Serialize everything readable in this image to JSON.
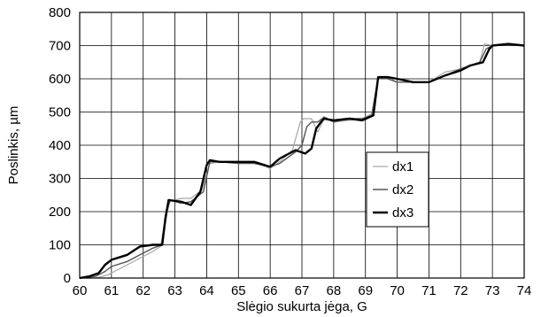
{
  "chart_data": {
    "type": "line",
    "title": "",
    "xlabel": "Slėgio sukurta jėga, G",
    "ylabel": "Poslinkis, µm",
    "xlim": [
      60,
      74
    ],
    "ylim": [
      0,
      800
    ],
    "xticks": [
      60,
      61,
      62,
      63,
      64,
      65,
      66,
      67,
      68,
      69,
      70,
      71,
      72,
      73,
      74
    ],
    "yticks": [
      0,
      100,
      200,
      300,
      400,
      500,
      600,
      700,
      800
    ],
    "grid": true,
    "legend_position": "center-right",
    "series": [
      {
        "name": "dx1",
        "color": "#a6a6a6",
        "stroke": 1.2,
        "x": [
          60.0,
          60.5,
          60.9,
          61.1,
          61.5,
          61.9,
          62.3,
          62.55,
          62.7,
          62.8,
          63.2,
          63.5,
          63.85,
          64.1,
          64.4,
          65.0,
          65.5,
          66.0,
          66.3,
          66.7,
          66.95,
          67.05,
          67.3,
          67.5,
          67.7,
          68.0,
          68.5,
          68.9,
          69.2,
          69.4,
          69.7,
          70.0,
          70.5,
          71.0,
          71.5,
          72.0,
          72.3,
          72.6,
          72.75,
          73.0,
          73.5,
          74.0
        ],
        "y": [
          0,
          0,
          10,
          20,
          40,
          60,
          80,
          95,
          185,
          230,
          240,
          240,
          265,
          345,
          350,
          345,
          350,
          330,
          350,
          385,
          470,
          480,
          480,
          440,
          480,
          470,
          475,
          480,
          495,
          605,
          605,
          590,
          590,
          590,
          620,
          630,
          640,
          650,
          705,
          700,
          705,
          700
        ]
      },
      {
        "name": "dx2",
        "color": "#555555",
        "stroke": 1.4,
        "x": [
          60.0,
          60.5,
          60.8,
          61.0,
          61.5,
          61.9,
          62.3,
          62.6,
          62.75,
          62.85,
          63.2,
          63.5,
          63.9,
          64.1,
          64.4,
          65.0,
          65.5,
          66.0,
          66.3,
          66.8,
          67.0,
          67.15,
          67.3,
          67.5,
          67.7,
          68.0,
          68.5,
          68.9,
          69.2,
          69.4,
          69.7,
          70.0,
          70.5,
          71.0,
          71.5,
          72.0,
          72.3,
          72.6,
          72.8,
          73.0,
          73.5,
          74.0
        ],
        "y": [
          0,
          5,
          20,
          35,
          50,
          70,
          90,
          100,
          200,
          235,
          225,
          230,
          260,
          350,
          350,
          345,
          345,
          335,
          345,
          380,
          400,
          455,
          470,
          470,
          485,
          470,
          480,
          480,
          490,
          605,
          600,
          590,
          590,
          590,
          610,
          630,
          640,
          650,
          690,
          700,
          705,
          700
        ]
      },
      {
        "name": "dx3",
        "color": "#000000",
        "stroke": 2.4,
        "x": [
          60.0,
          60.3,
          60.6,
          60.8,
          61.0,
          61.5,
          61.9,
          62.3,
          62.6,
          62.7,
          62.8,
          63.2,
          63.5,
          63.8,
          64.0,
          64.1,
          64.4,
          65.0,
          65.5,
          66.0,
          66.3,
          66.8,
          67.1,
          67.3,
          67.45,
          67.6,
          67.7,
          68.0,
          68.5,
          68.9,
          69.25,
          69.4,
          69.7,
          70.0,
          70.5,
          71.0,
          71.5,
          72.0,
          72.3,
          72.7,
          72.9,
          73.0,
          73.5,
          74.0
        ],
        "y": [
          0,
          5,
          15,
          40,
          55,
          70,
          95,
          100,
          100,
          180,
          235,
          230,
          220,
          260,
          340,
          355,
          350,
          350,
          350,
          335,
          360,
          385,
          375,
          390,
          450,
          470,
          480,
          475,
          480,
          475,
          490,
          605,
          605,
          600,
          590,
          590,
          610,
          625,
          640,
          650,
          690,
          700,
          705,
          700
        ]
      }
    ]
  }
}
